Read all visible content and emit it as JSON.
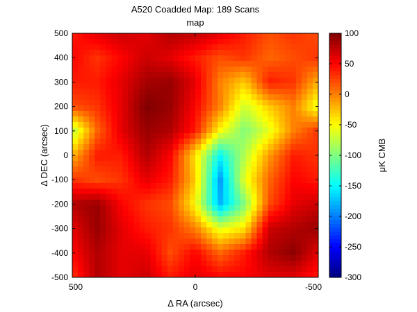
{
  "chart_data": {
    "type": "heatmap",
    "title": "A520 Coadded Map: 189 Scans",
    "subtitle": "map",
    "xlabel": "Δ RA (arcsec)",
    "ylabel": "Δ DEC (arcsec)",
    "colorbar_label": "μK CMB",
    "colormap": "jet",
    "xlim": [
      500,
      -500
    ],
    "ylim": [
      -500,
      500
    ],
    "clim": [
      -300,
      100
    ],
    "x_tick_values": [
      500,
      0,
      -500
    ],
    "x_tick_labels": [
      "500",
      "0",
      "-500"
    ],
    "y_tick_values": [
      500,
      400,
      300,
      200,
      100,
      0,
      -100,
      -200,
      -300,
      -400,
      -500
    ],
    "y_tick_labels": [
      "500",
      "400",
      "300",
      "200",
      "100",
      "0",
      "-100",
      "-200",
      "-300",
      "-400",
      "-500"
    ],
    "colorbar_tick_values": [
      100,
      50,
      0,
      -50,
      -100,
      -150,
      -200,
      -250,
      -300
    ],
    "colorbar_tick_labels": [
      "100",
      "50",
      "0",
      "-50",
      "-100",
      "-150",
      "-200",
      "-250",
      "-300"
    ],
    "grid": false,
    "x_coords": [
      500,
      400,
      300,
      200,
      100,
      0,
      -100,
      -200,
      -300,
      -400,
      -500
    ],
    "y_coords": [
      500,
      400,
      300,
      200,
      100,
      0,
      -100,
      -200,
      -300,
      -400,
      -500
    ],
    "values": [
      [
        40,
        60,
        70,
        60,
        80,
        75,
        60,
        40,
        20,
        30,
        20
      ],
      [
        50,
        30,
        50,
        70,
        60,
        40,
        20,
        30,
        10,
        20,
        30
      ],
      [
        40,
        40,
        60,
        85,
        90,
        60,
        0,
        -30,
        40,
        30,
        -20
      ],
      [
        20,
        30,
        60,
        100,
        90,
        50,
        0,
        -70,
        -30,
        0,
        -60
      ],
      [
        -80,
        10,
        60,
        90,
        80,
        40,
        -50,
        -100,
        -60,
        0,
        30
      ],
      [
        -20,
        40,
        40,
        80,
        50,
        -40,
        -150,
        -80,
        -10,
        40,
        30
      ],
      [
        30,
        20,
        30,
        60,
        40,
        -30,
        -190,
        -60,
        10,
        50,
        40
      ],
      [
        80,
        90,
        50,
        30,
        20,
        -50,
        -180,
        -100,
        20,
        60,
        70
      ],
      [
        60,
        90,
        60,
        40,
        30,
        0,
        -60,
        -40,
        70,
        80,
        90
      ],
      [
        50,
        80,
        60,
        60,
        20,
        50,
        10,
        40,
        80,
        95,
        60
      ],
      [
        30,
        80,
        60,
        70,
        40,
        60,
        50,
        50,
        60,
        60,
        40
      ]
    ]
  }
}
